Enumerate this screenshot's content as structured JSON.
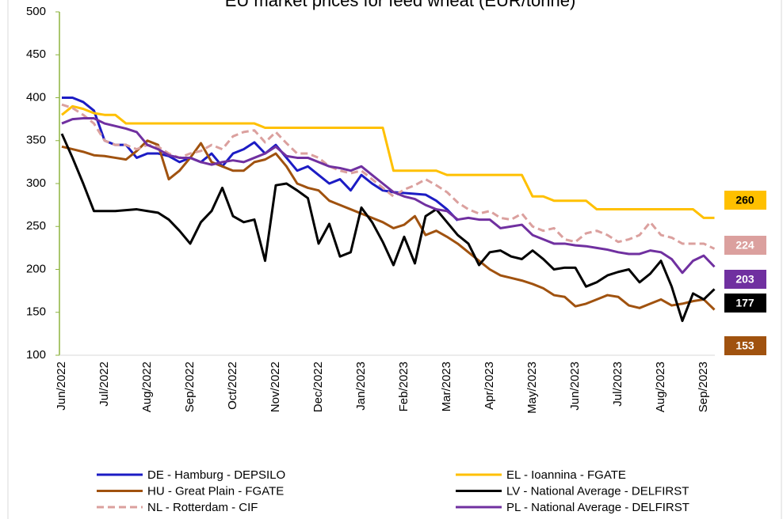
{
  "chart_data": {
    "type": "line",
    "title": "EU market prices for feed wheat (EUR/tonne)",
    "categories": [
      "Jun/2022",
      null,
      null,
      null,
      "Jul/2022",
      null,
      null,
      null,
      "Aug/2022",
      null,
      null,
      null,
      "Sep/2022",
      null,
      null,
      null,
      "Oct/2022",
      null,
      null,
      null,
      "Nov/2022",
      null,
      null,
      null,
      "Dec/2022",
      null,
      null,
      null,
      "Jan/2023",
      null,
      null,
      null,
      "Feb/2023",
      null,
      null,
      null,
      "Mar/2023",
      null,
      null,
      null,
      "Apr/2023",
      null,
      null,
      null,
      "May/2023",
      null,
      null,
      null,
      "Jun/2023",
      null,
      null,
      null,
      "Jul/2023",
      null,
      null,
      null,
      "Aug/2023",
      null,
      null,
      null,
      "Sep/2023",
      null
    ],
    "ylim": [
      100,
      500
    ],
    "yticks": [
      100,
      150,
      200,
      250,
      300,
      350,
      400,
      450,
      500
    ],
    "grid": false,
    "legend": "bottom",
    "series": [
      {
        "name": "DE - Hamburg - DEPSILO",
        "color": "#1c1cc4",
        "values": [
          400,
          400,
          395,
          385,
          350,
          345,
          345,
          330,
          335,
          335,
          332,
          325,
          330,
          325,
          335,
          320,
          335,
          340,
          348,
          335,
          345,
          330,
          315,
          320,
          310,
          300,
          305,
          292,
          310,
          300,
          292,
          290,
          289,
          288,
          287,
          280,
          270,
          257,
          null,
          null,
          null,
          null,
          null,
          null,
          null,
          null,
          null,
          null,
          null,
          null,
          null,
          null,
          null,
          null,
          null,
          null,
          null,
          null,
          null,
          null,
          null,
          null
        ]
      },
      {
        "name": "EL - Ioannina - FGATE",
        "color": "#ffc000",
        "values": [
          380,
          390,
          387,
          382,
          380,
          380,
          370,
          370,
          370,
          370,
          370,
          370,
          370,
          370,
          370,
          370,
          370,
          370,
          370,
          365,
          365,
          365,
          365,
          365,
          365,
          365,
          365,
          365,
          365,
          365,
          365,
          315,
          315,
          315,
          315,
          315,
          310,
          310,
          310,
          310,
          310,
          310,
          310,
          310,
          285,
          285,
          280,
          280,
          280,
          280,
          270,
          270,
          270,
          270,
          270,
          270,
          270,
          270,
          270,
          270,
          260,
          260
        ]
      },
      {
        "name": "HU - Great Plain - FGATE",
        "color": "#a0520f",
        "values": [
          343,
          340,
          337,
          333,
          332,
          330,
          328,
          338,
          350,
          345,
          305,
          315,
          330,
          347,
          325,
          320,
          315,
          315,
          325,
          328,
          335,
          320,
          300,
          295,
          292,
          280,
          275,
          270,
          265,
          260,
          255,
          248,
          252,
          262,
          240,
          245,
          238,
          230,
          220,
          210,
          200,
          193,
          190,
          187,
          183,
          178,
          170,
          168,
          157,
          160,
          165,
          170,
          168,
          158,
          155,
          160,
          165,
          158,
          160,
          163,
          165,
          153
        ]
      },
      {
        "name": "LV - National Average - DELFIRST",
        "color": "#000000",
        "values": [
          358,
          330,
          300,
          268,
          268,
          268,
          269,
          270,
          268,
          266,
          258,
          245,
          230,
          255,
          268,
          295,
          262,
          255,
          258,
          210,
          298,
          300,
          292,
          283,
          230,
          253,
          215,
          220,
          272,
          255,
          232,
          205,
          238,
          207,
          262,
          270,
          255,
          240,
          230,
          205,
          220,
          222,
          215,
          212,
          222,
          212,
          200,
          202,
          202,
          180,
          185,
          193,
          197,
          200,
          185,
          195,
          210,
          180,
          140,
          172,
          165,
          177
        ]
      },
      {
        "name": "NL - Rotterdam - CIF",
        "color": "#dba09e",
        "dashed": true,
        "values": [
          392,
          388,
          380,
          370,
          350,
          345,
          345,
          340,
          345,
          343,
          335,
          330,
          335,
          338,
          345,
          340,
          355,
          360,
          362,
          348,
          360,
          347,
          335,
          335,
          330,
          320,
          315,
          312,
          315,
          305,
          295,
          285,
          293,
          298,
          305,
          298,
          290,
          278,
          270,
          265,
          268,
          260,
          258,
          265,
          250,
          245,
          248,
          235,
          232,
          242,
          245,
          240,
          232,
          235,
          240,
          255,
          240,
          237,
          230,
          230,
          230,
          224
        ]
      },
      {
        "name": "PL - National Average - DELFIRST",
        "color": "#7030a0",
        "values": [
          370,
          375,
          376,
          376,
          370,
          367,
          364,
          360,
          345,
          340,
          333,
          330,
          330,
          325,
          322,
          325,
          327,
          325,
          330,
          335,
          343,
          332,
          330,
          330,
          325,
          320,
          318,
          315,
          320,
          310,
          300,
          290,
          285,
          282,
          275,
          270,
          268,
          258,
          260,
          258,
          258,
          248,
          250,
          252,
          240,
          235,
          230,
          230,
          228,
          227,
          225,
          223,
          220,
          218,
          218,
          222,
          220,
          212,
          196,
          210,
          216,
          203
        ]
      }
    ]
  }
}
